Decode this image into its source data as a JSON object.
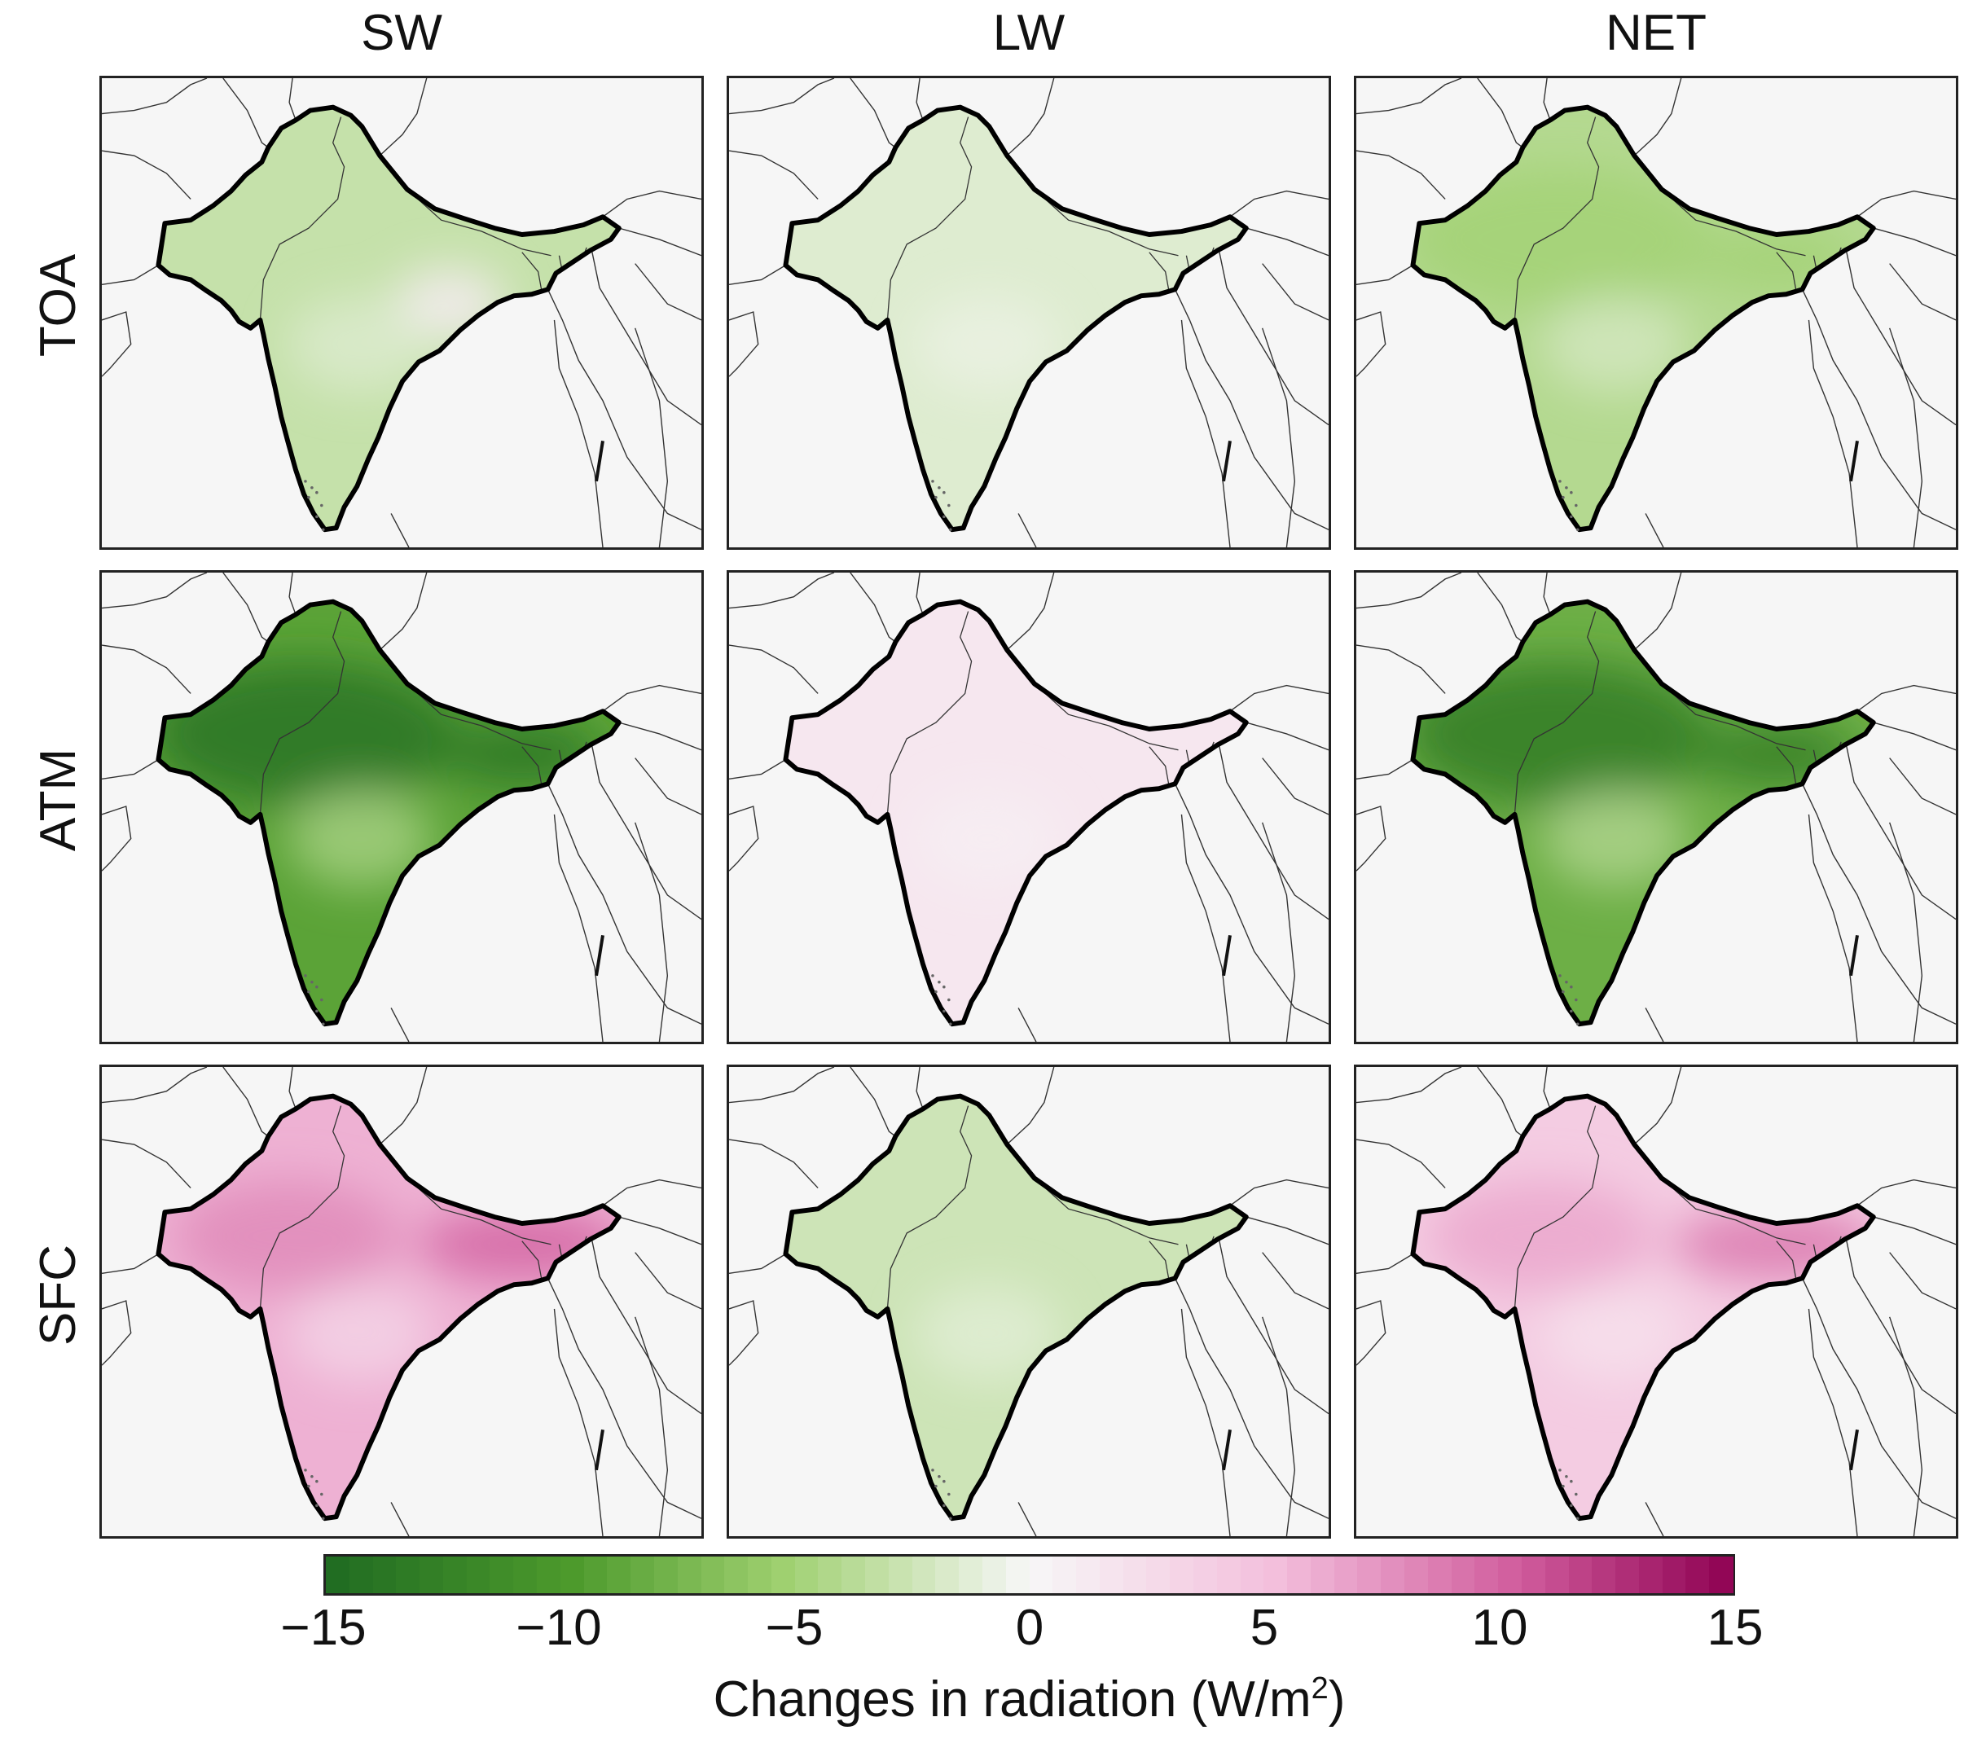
{
  "figure": {
    "columns": [
      "SW",
      "LW",
      "NET"
    ],
    "rows": [
      "TOA",
      "ATM",
      "SFC"
    ],
    "units": "W/m2"
  },
  "colorbar": {
    "ticks": [
      "−15",
      "−10",
      "−5",
      "0",
      "5",
      "10",
      "15"
    ],
    "tick_values": [
      -15,
      -10,
      -5,
      0,
      5,
      10,
      15
    ],
    "range": [
      -15,
      15
    ],
    "label_text": "Changes in radiation (W/m",
    "label_sup": "2",
    "label_close": ")",
    "color_low": "#1f6b22",
    "color_mid": "#f7f7f7",
    "color_high": "#8e0152"
  },
  "panels": [
    {
      "row": "TOA",
      "col": "SW",
      "mean_value": -3,
      "overlay": {
        "value": 1,
        "location": "central-east"
      }
    },
    {
      "row": "TOA",
      "col": "LW",
      "mean_value": -1.5
    },
    {
      "row": "TOA",
      "col": "NET",
      "mean_value": -4,
      "overlay": {
        "value": -5,
        "location": "northwest"
      }
    },
    {
      "row": "ATM",
      "col": "SW",
      "mean_value": -9,
      "overlay": {
        "value": -14,
        "location": "northwest"
      }
    },
    {
      "row": "ATM",
      "col": "LW",
      "mean_value": 1.5
    },
    {
      "row": "ATM",
      "col": "NET",
      "mean_value": -8,
      "overlay": {
        "value": -13,
        "location": "northwest"
      }
    },
    {
      "row": "SFC",
      "col": "SW",
      "mean_value": 6,
      "overlay": {
        "value": 10,
        "location": "northeast"
      }
    },
    {
      "row": "SFC",
      "col": "LW",
      "mean_value": -2.5
    },
    {
      "row": "SFC",
      "col": "NET",
      "mean_value": 4,
      "overlay": {
        "value": 9,
        "location": "northeast"
      }
    }
  ]
}
